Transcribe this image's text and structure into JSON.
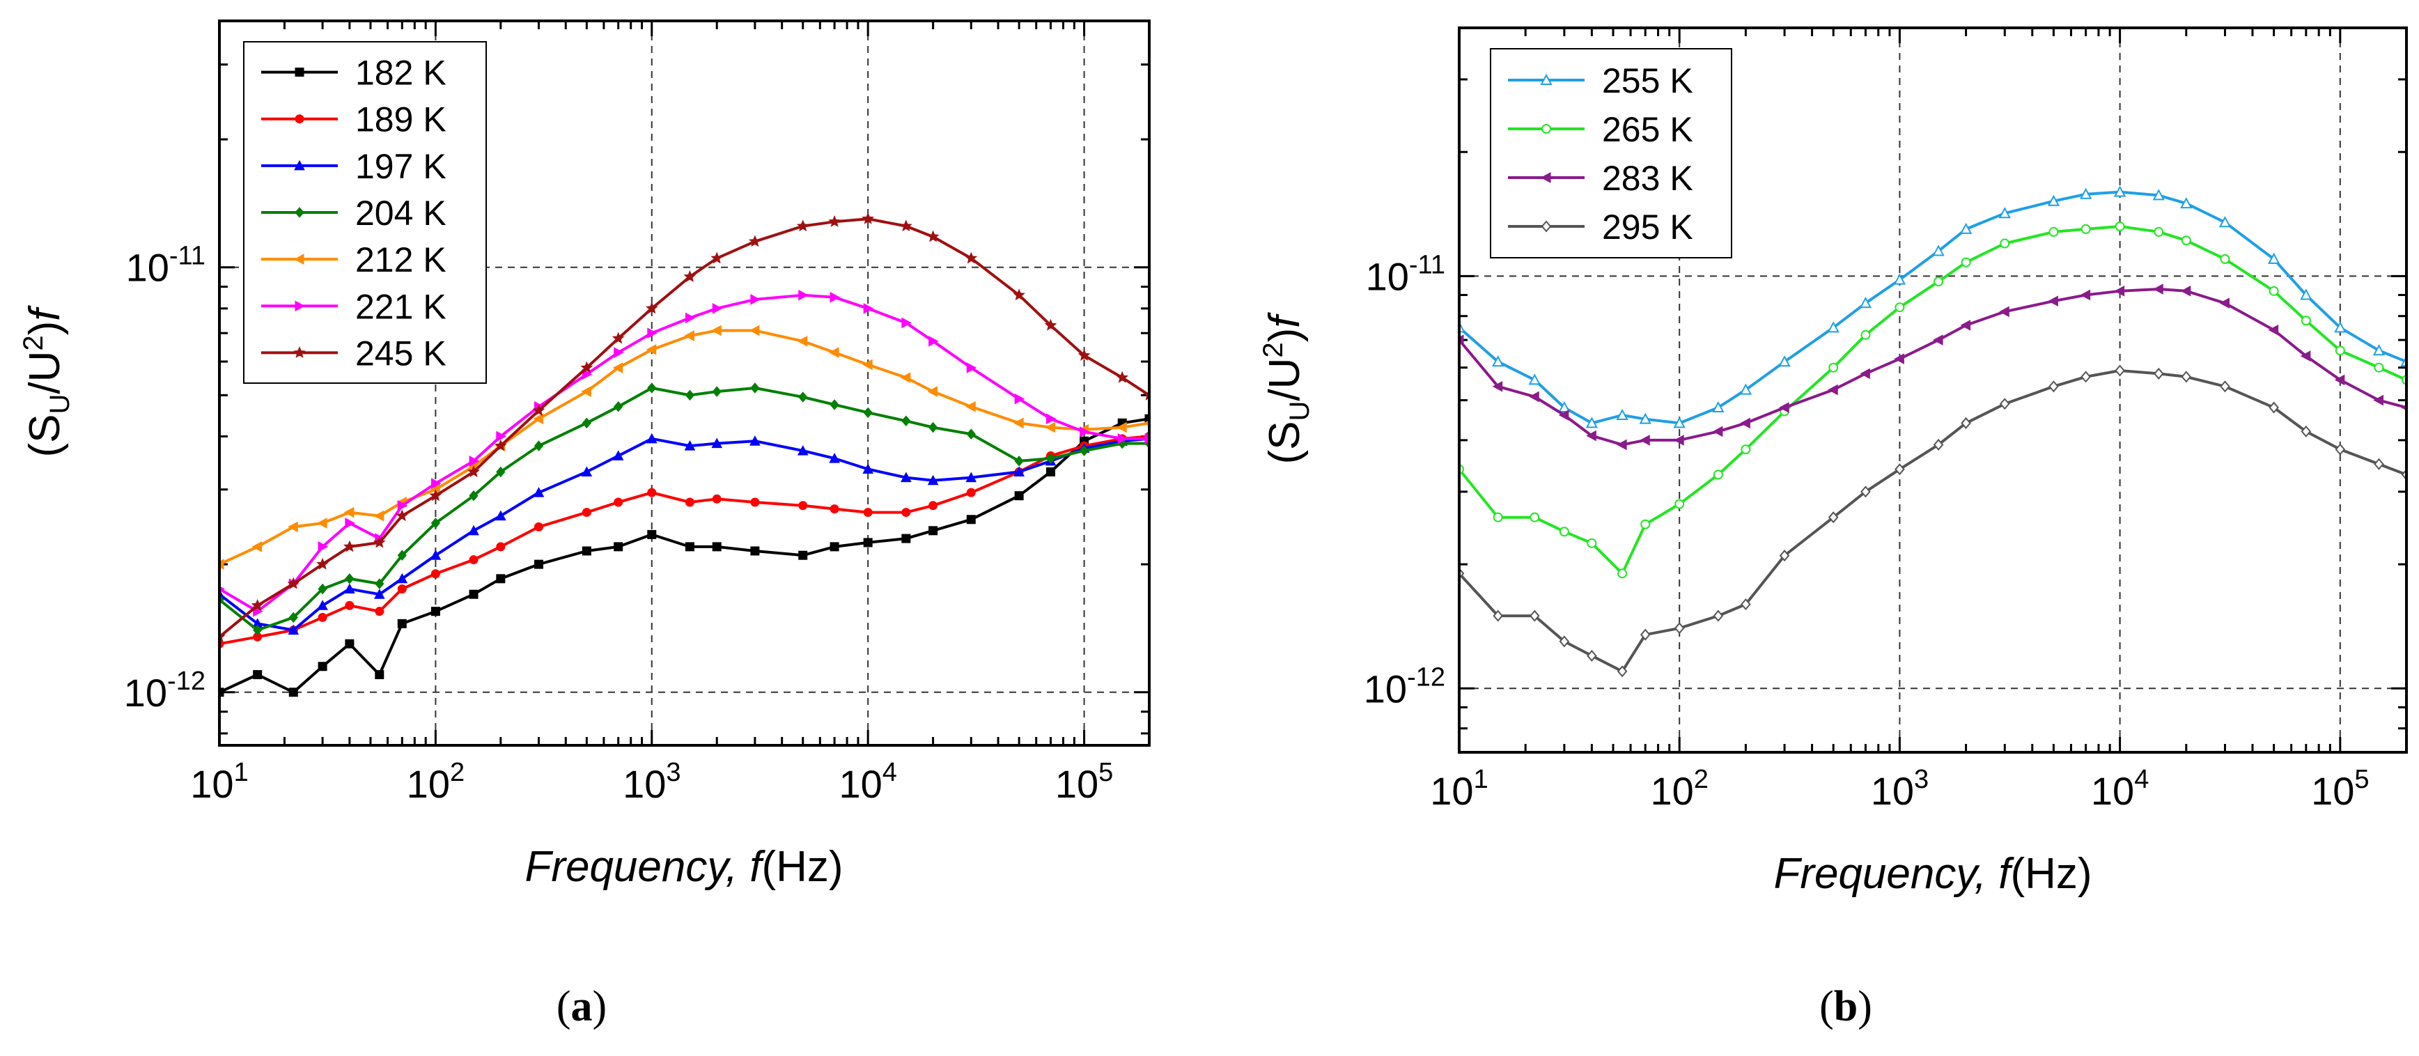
{
  "chart_data": [
    {
      "id": "a",
      "type": "line",
      "panel_label": "(a)",
      "panel_letter": "a",
      "xlabel": "Frequency, f(Hz)",
      "xlabel_italic": "Frequency, f",
      "xlabel_unit": "(Hz)",
      "ylabel": "(S_U/U^2)f",
      "xscale": "log",
      "yscale": "log",
      "xlim": [
        10,
        200000
      ],
      "ylim": [
        7.5e-13,
        3.8e-11
      ],
      "xticks": [
        {
          "value": 10,
          "base": "10",
          "exp": "1"
        },
        {
          "value": 100,
          "base": "10",
          "exp": "2"
        },
        {
          "value": 1000,
          "base": "10",
          "exp": "3"
        },
        {
          "value": 10000,
          "base": "10",
          "exp": "4"
        },
        {
          "value": 100000,
          "base": "10",
          "exp": "5"
        }
      ],
      "yticks": [
        {
          "value": 1e-12,
          "base": "10",
          "exp": "-12"
        },
        {
          "value": 1e-11,
          "base": "10",
          "exp": "-11"
        }
      ],
      "grid": "dashed at major ticks",
      "legend_position": "top-left",
      "series": [
        {
          "name": "182 K",
          "color": "#000000",
          "marker": "square",
          "x": [
            10,
            15,
            22,
            30,
            40,
            55,
            70,
            100,
            150,
            200,
            300,
            500,
            700,
            1000,
            1500,
            2000,
            3000,
            5000,
            7000,
            10000,
            15000,
            20000,
            30000,
            50000,
            70000,
            100000,
            150000,
            200000
          ],
          "y": [
            1e-12,
            1.1e-12,
            1e-12,
            1.15e-12,
            1.3e-12,
            1.1e-12,
            1.45e-12,
            1.55e-12,
            1.7e-12,
            1.85e-12,
            2e-12,
            2.15e-12,
            2.2e-12,
            2.35e-12,
            2.2e-12,
            2.2e-12,
            2.15e-12,
            2.1e-12,
            2.2e-12,
            2.25e-12,
            2.3e-12,
            2.4e-12,
            2.55e-12,
            2.9e-12,
            3.3e-12,
            3.9e-12,
            4.3e-12,
            4.4e-12
          ]
        },
        {
          "name": "189 K",
          "color": "#ff0000",
          "marker": "circle",
          "x": [
            10,
            15,
            22,
            30,
            40,
            55,
            70,
            100,
            150,
            200,
            300,
            500,
            700,
            1000,
            1500,
            2000,
            3000,
            5000,
            7000,
            10000,
            15000,
            20000,
            30000,
            50000,
            70000,
            100000,
            150000,
            200000
          ],
          "y": [
            1.3e-12,
            1.35e-12,
            1.4e-12,
            1.5e-12,
            1.6e-12,
            1.55e-12,
            1.75e-12,
            1.9e-12,
            2.05e-12,
            2.2e-12,
            2.45e-12,
            2.65e-12,
            2.8e-12,
            2.95e-12,
            2.8e-12,
            2.85e-12,
            2.8e-12,
            2.75e-12,
            2.7e-12,
            2.65e-12,
            2.65e-12,
            2.75e-12,
            2.95e-12,
            3.3e-12,
            3.6e-12,
            3.8e-12,
            3.95e-12,
            4e-12
          ]
        },
        {
          "name": "197 K",
          "color": "#0000ff",
          "marker": "triangle",
          "x": [
            10,
            15,
            22,
            30,
            40,
            55,
            70,
            100,
            150,
            200,
            300,
            500,
            700,
            1000,
            1500,
            2000,
            3000,
            5000,
            7000,
            10000,
            15000,
            20000,
            30000,
            50000,
            70000,
            100000,
            150000,
            200000
          ],
          "y": [
            1.7e-12,
            1.45e-12,
            1.4e-12,
            1.6e-12,
            1.75e-12,
            1.7e-12,
            1.85e-12,
            2.1e-12,
            2.4e-12,
            2.6e-12,
            2.95e-12,
            3.3e-12,
            3.6e-12,
            3.95e-12,
            3.8e-12,
            3.85e-12,
            3.9e-12,
            3.7e-12,
            3.55e-12,
            3.35e-12,
            3.2e-12,
            3.15e-12,
            3.2e-12,
            3.3e-12,
            3.5e-12,
            3.75e-12,
            3.9e-12,
            3.95e-12
          ]
        },
        {
          "name": "204 K",
          "color": "#008000",
          "marker": "diamond",
          "x": [
            10,
            15,
            22,
            30,
            40,
            55,
            70,
            100,
            150,
            200,
            300,
            500,
            700,
            1000,
            1500,
            2000,
            3000,
            5000,
            7000,
            10000,
            15000,
            20000,
            30000,
            50000,
            70000,
            100000,
            150000,
            200000
          ],
          "y": [
            1.65e-12,
            1.4e-12,
            1.5e-12,
            1.75e-12,
            1.85e-12,
            1.8e-12,
            2.1e-12,
            2.5e-12,
            2.9e-12,
            3.3e-12,
            3.8e-12,
            4.3e-12,
            4.7e-12,
            5.2e-12,
            5e-12,
            5.1e-12,
            5.2e-12,
            4.95e-12,
            4.75e-12,
            4.55e-12,
            4.35e-12,
            4.2e-12,
            4.05e-12,
            3.5e-12,
            3.55e-12,
            3.7e-12,
            3.85e-12,
            3.85e-12
          ]
        },
        {
          "name": "212 K",
          "color": "#ff8c00",
          "marker": "left-triangle",
          "x": [
            10,
            15,
            22,
            30,
            40,
            55,
            70,
            100,
            150,
            200,
            300,
            500,
            700,
            1000,
            1500,
            2000,
            3000,
            5000,
            7000,
            10000,
            15000,
            20000,
            30000,
            50000,
            70000,
            100000,
            150000,
            200000
          ],
          "y": [
            2e-12,
            2.2e-12,
            2.45e-12,
            2.5e-12,
            2.65e-12,
            2.6e-12,
            2.8e-12,
            3e-12,
            3.4e-12,
            3.8e-12,
            4.4e-12,
            5.1e-12,
            5.8e-12,
            6.4e-12,
            6.9e-12,
            7.1e-12,
            7.1e-12,
            6.7e-12,
            6.3e-12,
            5.9e-12,
            5.5e-12,
            5.1e-12,
            4.7e-12,
            4.3e-12,
            4.2e-12,
            4.15e-12,
            4.2e-12,
            4.3e-12
          ]
        },
        {
          "name": "221 K",
          "color": "#ff00ff",
          "marker": "right-triangle",
          "x": [
            10,
            15,
            22,
            30,
            40,
            55,
            70,
            100,
            150,
            200,
            300,
            500,
            700,
            1000,
            1500,
            2000,
            3000,
            5000,
            7000,
            10000,
            15000,
            20000,
            30000,
            50000,
            70000,
            100000,
            150000,
            200000
          ],
          "y": [
            1.75e-12,
            1.55e-12,
            1.8e-12,
            2.2e-12,
            2.5e-12,
            2.3e-12,
            2.75e-12,
            3.1e-12,
            3.5e-12,
            4e-12,
            4.7e-12,
            5.6e-12,
            6.3e-12,
            7e-12,
            7.6e-12,
            8e-12,
            8.4e-12,
            8.6e-12,
            8.5e-12,
            8e-12,
            7.4e-12,
            6.7e-12,
            5.8e-12,
            4.9e-12,
            4.4e-12,
            4.1e-12,
            3.95e-12,
            3.95e-12
          ]
        },
        {
          "name": "245 K",
          "color": "#a01010",
          "marker": "star",
          "x": [
            10,
            15,
            22,
            30,
            40,
            55,
            70,
            100,
            150,
            200,
            300,
            500,
            700,
            1000,
            1500,
            2000,
            3000,
            5000,
            7000,
            10000,
            15000,
            20000,
            30000,
            50000,
            70000,
            100000,
            150000,
            200000
          ],
          "y": [
            1.35e-12,
            1.6e-12,
            1.8e-12,
            2e-12,
            2.2e-12,
            2.25e-12,
            2.6e-12,
            2.9e-12,
            3.3e-12,
            3.8e-12,
            4.6e-12,
            5.8e-12,
            6.8e-12,
            8e-12,
            9.5e-12,
            1.05e-11,
            1.15e-11,
            1.25e-11,
            1.28e-11,
            1.3e-11,
            1.25e-11,
            1.18e-11,
            1.05e-11,
            8.6e-12,
            7.3e-12,
            6.2e-12,
            5.5e-12,
            5e-12
          ]
        }
      ]
    },
    {
      "id": "b",
      "type": "line",
      "panel_label": "(b)",
      "panel_letter": "b",
      "xlabel": "Frequency, f(Hz)",
      "xlabel_italic": "Frequency, f",
      "xlabel_unit": "(Hz)",
      "ylabel": "(S_U/U^2)f",
      "xscale": "log",
      "yscale": "log",
      "xlim": [
        10,
        200000
      ],
      "ylim": [
        7e-13,
        4e-11
      ],
      "xticks": [
        {
          "value": 10,
          "base": "10",
          "exp": "1"
        },
        {
          "value": 100,
          "base": "10",
          "exp": "2"
        },
        {
          "value": 1000,
          "base": "10",
          "exp": "3"
        },
        {
          "value": 10000,
          "base": "10",
          "exp": "4"
        },
        {
          "value": 100000,
          "base": "10",
          "exp": "5"
        }
      ],
      "yticks": [
        {
          "value": 1e-12,
          "base": "10",
          "exp": "-12"
        },
        {
          "value": 1e-11,
          "base": "10",
          "exp": "-11"
        }
      ],
      "grid": "dashed at major ticks",
      "legend_position": "top-left",
      "series": [
        {
          "name": "255 K",
          "color": "#1ea0e6",
          "marker": "open-triangle",
          "x": [
            10,
            15,
            22,
            30,
            40,
            55,
            70,
            100,
            150,
            200,
            300,
            500,
            700,
            1000,
            1500,
            2000,
            3000,
            5000,
            7000,
            10000,
            15000,
            20000,
            30000,
            50000,
            70000,
            100000,
            150000,
            200000
          ],
          "y": [
            7.5e-12,
            6.2e-12,
            5.6e-12,
            4.8e-12,
            4.4e-12,
            4.6e-12,
            4.5e-12,
            4.4e-12,
            4.8e-12,
            5.3e-12,
            6.2e-12,
            7.5e-12,
            8.6e-12,
            9.8e-12,
            1.15e-11,
            1.3e-11,
            1.42e-11,
            1.52e-11,
            1.58e-11,
            1.6e-11,
            1.57e-11,
            1.5e-11,
            1.35e-11,
            1.1e-11,
            9e-12,
            7.5e-12,
            6.6e-12,
            6.2e-12
          ]
        },
        {
          "name": "265 K",
          "color": "#22e622",
          "marker": "open-circle",
          "x": [
            10,
            15,
            22,
            30,
            40,
            55,
            70,
            100,
            150,
            200,
            300,
            500,
            700,
            1000,
            1500,
            2000,
            3000,
            5000,
            7000,
            10000,
            15000,
            20000,
            30000,
            50000,
            70000,
            100000,
            150000,
            200000
          ],
          "y": [
            3.4e-12,
            2.6e-12,
            2.6e-12,
            2.4e-12,
            2.25e-12,
            1.9e-12,
            2.5e-12,
            2.8e-12,
            3.3e-12,
            3.8e-12,
            4.7e-12,
            6e-12,
            7.2e-12,
            8.4e-12,
            9.7e-12,
            1.08e-11,
            1.2e-11,
            1.28e-11,
            1.3e-11,
            1.32e-11,
            1.28e-11,
            1.22e-11,
            1.1e-11,
            9.2e-12,
            7.8e-12,
            6.6e-12,
            6e-12,
            5.6e-12
          ]
        },
        {
          "name": "283 K",
          "color": "#8b1a8b",
          "marker": "left-triangle",
          "x": [
            10,
            15,
            22,
            30,
            40,
            55,
            70,
            100,
            150,
            200,
            300,
            500,
            700,
            1000,
            1500,
            2000,
            3000,
            5000,
            7000,
            10000,
            15000,
            20000,
            30000,
            50000,
            70000,
            100000,
            150000,
            200000
          ],
          "y": [
            7e-12,
            5.4e-12,
            5.1e-12,
            4.6e-12,
            4.1e-12,
            3.9e-12,
            4e-12,
            4e-12,
            4.2e-12,
            4.4e-12,
            4.8e-12,
            5.3e-12,
            5.8e-12,
            6.3e-12,
            7e-12,
            7.6e-12,
            8.2e-12,
            8.7e-12,
            9e-12,
            9.2e-12,
            9.3e-12,
            9.2e-12,
            8.6e-12,
            7.4e-12,
            6.4e-12,
            5.6e-12,
            5e-12,
            4.8e-12
          ]
        },
        {
          "name": "295 K",
          "color": "#555555",
          "marker": "open-diamond",
          "x": [
            10,
            15,
            22,
            30,
            40,
            55,
            70,
            100,
            150,
            200,
            300,
            500,
            700,
            1000,
            1500,
            2000,
            3000,
            5000,
            7000,
            10000,
            15000,
            20000,
            30000,
            50000,
            70000,
            100000,
            150000,
            200000
          ],
          "y": [
            1.9e-12,
            1.5e-12,
            1.5e-12,
            1.3e-12,
            1.2e-12,
            1.1e-12,
            1.35e-12,
            1.4e-12,
            1.5e-12,
            1.6e-12,
            2.1e-12,
            2.6e-12,
            3e-12,
            3.4e-12,
            3.9e-12,
            4.4e-12,
            4.9e-12,
            5.4e-12,
            5.7e-12,
            5.9e-12,
            5.8e-12,
            5.7e-12,
            5.4e-12,
            4.8e-12,
            4.2e-12,
            3.8e-12,
            3.5e-12,
            3.3e-12
          ]
        }
      ]
    }
  ]
}
